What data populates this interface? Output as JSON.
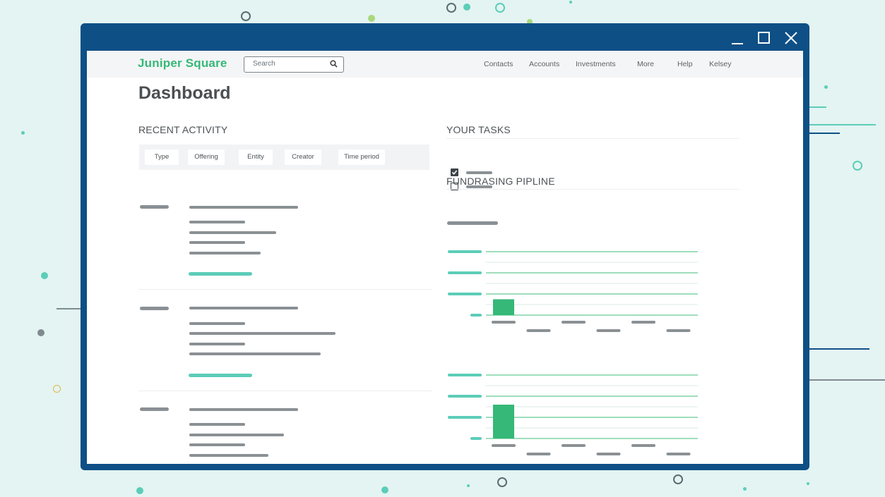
{
  "window": {
    "controls": [
      "minimize-icon",
      "maximize-icon",
      "close-icon"
    ]
  },
  "nav": {
    "brand": "Juniper Square",
    "search_placeholder": "Search",
    "items": [
      "Contacts",
      "Accounts",
      "Investments",
      "More",
      "Help",
      "Kelsey"
    ]
  },
  "page": {
    "title": "Dashboard"
  },
  "recent_activity": {
    "heading": "RECENT ACTIVITY",
    "filters": [
      "Type",
      "Offering",
      "Entity",
      "Creator",
      "Time period"
    ]
  },
  "tasks": {
    "heading": "YOUR TASKS",
    "items": [
      {
        "checked": true
      },
      {
        "checked": false
      }
    ]
  },
  "pipeline": {
    "heading": "FUNDRASING PIPLINE"
  },
  "colors": {
    "accent_green": "#35b878",
    "teal": "#5ccdb8",
    "window_blue": "#0e4f86",
    "placeholder_gray": "#8a9094"
  },
  "chart_data": [
    {
      "type": "bar",
      "categories": [
        "",
        "",
        "",
        "",
        "",
        ""
      ],
      "values": [
        1,
        0,
        0,
        0,
        0,
        0
      ],
      "ylim": [
        0,
        4
      ],
      "title": "",
      "xlabel": "",
      "ylabel": ""
    },
    {
      "type": "bar",
      "categories": [
        "",
        "",
        "",
        "",
        "",
        ""
      ],
      "values": [
        3.2,
        0,
        0,
        0,
        0,
        0
      ],
      "ylim": [
        0,
        6
      ],
      "title": "",
      "xlabel": "",
      "ylabel": ""
    }
  ]
}
